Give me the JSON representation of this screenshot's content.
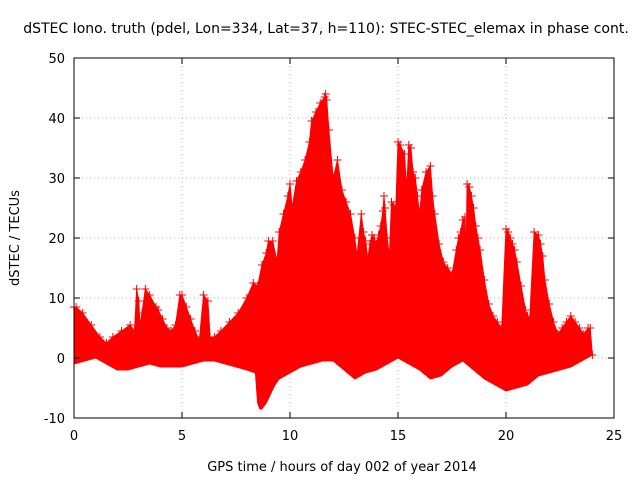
{
  "chart_data": {
    "type": "scatter",
    "title": "dSTEC Iono. truth (pdel, Lon=334, Lat=37, h=110): STEC-STEC_elemax in phase cont.",
    "xlabel": "GPS time / hours of day 002 of year 2014",
    "ylabel": "dSTEC  / TECUs",
    "xlim": [
      0,
      25
    ],
    "ylim": [
      -10,
      50
    ],
    "xticks": [
      0,
      5,
      10,
      15,
      20,
      25
    ],
    "yticks": [
      -10,
      0,
      10,
      20,
      30,
      40,
      50
    ],
    "grid": true,
    "marker": "+",
    "series": [
      {
        "name": "dSTEC",
        "color": "#ff0000",
        "upper_envelope": {
          "x": [
            0.0,
            0.1,
            0.4,
            0.8,
            1.2,
            1.5,
            1.8,
            2.2,
            2.6,
            2.8,
            2.9,
            3.0,
            3.05,
            3.15,
            3.3,
            3.5,
            3.8,
            3.9,
            4.1,
            4.3,
            4.5,
            4.7,
            4.9,
            5.0,
            5.2,
            5.4,
            5.6,
            5.8,
            6.0,
            6.2,
            6.3,
            6.5,
            6.8,
            7.2,
            7.6,
            8.0,
            8.3,
            8.5,
            8.7,
            8.9,
            9.0,
            9.2,
            9.4,
            9.5,
            9.7,
            9.9,
            10.0,
            10.1,
            10.3,
            10.5,
            10.7,
            10.9,
            11.0,
            11.2,
            11.4,
            11.6,
            11.65,
            11.7,
            11.8,
            12.0,
            12.2,
            12.4,
            12.6,
            12.8,
            13.0,
            13.1,
            13.3,
            13.4,
            13.5,
            13.6,
            13.7,
            13.8,
            13.9,
            14.0,
            14.1,
            14.2,
            14.3,
            14.35,
            14.4,
            14.5,
            14.6,
            14.7,
            14.8,
            14.9,
            15.0,
            15.1,
            15.3,
            15.4,
            15.5,
            15.6,
            15.7,
            15.8,
            15.9,
            16.0,
            16.1,
            16.3,
            16.5,
            16.6,
            16.7,
            16.9,
            17.1,
            17.3,
            17.5,
            17.7,
            17.8,
            17.9,
            18.0,
            18.1,
            18.15,
            18.2,
            18.3,
            18.4,
            18.5,
            18.6,
            18.7,
            18.8,
            19.0,
            19.2,
            19.4,
            19.6,
            19.8,
            20.0,
            20.1,
            20.2,
            20.3,
            20.4,
            20.5,
            20.7,
            20.9,
            21.0,
            21.1,
            21.3,
            21.5,
            21.6,
            21.7,
            21.8,
            22.0,
            22.2,
            22.4,
            22.6,
            22.8,
            23.0,
            23.2,
            23.4,
            23.6,
            23.8,
            23.9,
            24.0
          ],
          "y": [
            8.5,
            8.5,
            7.5,
            5.5,
            3.5,
            2.5,
            3.5,
            4.5,
            5.5,
            4.5,
            11.5,
            9.5,
            5.5,
            7.5,
            11.5,
            10.5,
            8.5,
            8.0,
            6.5,
            5.0,
            4.5,
            5.5,
            10.5,
            10.5,
            8.5,
            6.5,
            4.5,
            3.0,
            10.5,
            9.5,
            3.5,
            3.5,
            4.5,
            6.0,
            7.5,
            10.0,
            12.5,
            12.0,
            15.5,
            17.5,
            19.5,
            19.5,
            16.0,
            21.0,
            24.0,
            27.0,
            29.0,
            25.0,
            29.5,
            31.0,
            33.0,
            36.0,
            39.5,
            41.0,
            42.5,
            43.5,
            44.0,
            43.0,
            38.0,
            30.0,
            33.0,
            28.0,
            26.0,
            24.0,
            20.0,
            17.0,
            24.0,
            21.0,
            19.5,
            16.5,
            19.0,
            20.5,
            20.0,
            19.0,
            20.5,
            22.0,
            24.5,
            27.0,
            25.0,
            20.0,
            17.0,
            26.0,
            25.5,
            25.0,
            36.0,
            35.5,
            34.0,
            28.0,
            35.5,
            35.0,
            31.0,
            30.0,
            27.0,
            24.0,
            28.0,
            31.0,
            32.0,
            27.0,
            24.0,
            19.0,
            16.0,
            15.0,
            14.0,
            18.0,
            20.0,
            21.0,
            23.0,
            23.5,
            17.0,
            29.0,
            28.5,
            27.0,
            25.0,
            22.0,
            20.0,
            18.0,
            13.0,
            9.0,
            7.0,
            6.0,
            5.0,
            21.5,
            21.0,
            20.0,
            19.0,
            18.0,
            16.0,
            12.0,
            8.0,
            7.0,
            6.5,
            21.0,
            20.5,
            19.0,
            17.0,
            13.0,
            9.0,
            6.0,
            4.0,
            5.0,
            6.0,
            7.0,
            6.0,
            5.0,
            4.0,
            5.0,
            5.0,
            0.5
          ]
        },
        "lower_envelope": {
          "x": [
            0.0,
            0.5,
            1.0,
            1.5,
            2.0,
            2.5,
            3.0,
            3.5,
            4.0,
            4.5,
            5.0,
            5.5,
            6.0,
            6.5,
            7.0,
            7.5,
            8.0,
            8.4,
            8.5,
            8.6,
            8.7,
            8.9,
            9.1,
            9.3,
            9.5,
            10.0,
            10.5,
            11.0,
            11.5,
            12.0,
            12.5,
            13.0,
            13.5,
            14.0,
            14.5,
            15.0,
            15.5,
            16.0,
            16.5,
            17.0,
            17.5,
            18.0,
            18.5,
            19.0,
            19.5,
            20.0,
            20.5,
            21.0,
            21.5,
            22.0,
            22.5,
            23.0,
            23.5,
            24.0
          ],
          "y": [
            -1.0,
            -0.5,
            0.0,
            -1.0,
            -2.0,
            -2.0,
            -1.5,
            -1.0,
            -1.5,
            -1.5,
            -1.5,
            -1.0,
            -0.5,
            -0.5,
            -1.0,
            -1.5,
            -2.0,
            -2.5,
            -7.5,
            -8.5,
            -8.5,
            -7.5,
            -6.0,
            -4.5,
            -3.5,
            -2.5,
            -1.5,
            -1.0,
            -0.5,
            -0.5,
            -2.0,
            -3.5,
            -2.5,
            -2.0,
            -1.0,
            0.0,
            -1.0,
            -2.0,
            -3.5,
            -3.0,
            -1.5,
            -0.5,
            -2.0,
            -3.5,
            -4.5,
            -5.5,
            -5.0,
            -4.5,
            -3.0,
            -2.5,
            -2.0,
            -1.5,
            -0.5,
            0.5
          ]
        }
      }
    ]
  }
}
